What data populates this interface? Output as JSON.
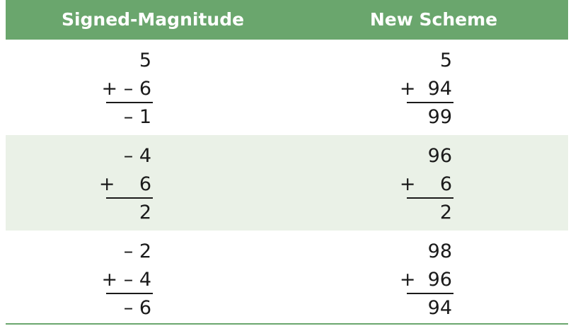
{
  "header": {
    "left": "Signed-Magnitude",
    "right": "New Scheme"
  },
  "rows": [
    {
      "signed_magnitude": {
        "top": "5",
        "addend": "+ – 6",
        "result": "– 1"
      },
      "new_scheme": {
        "top": "5",
        "addend": "+  94",
        "result": "99"
      }
    },
    {
      "signed_magnitude": {
        "top": "– 4",
        "addend": "+    6",
        "result": "2"
      },
      "new_scheme": {
        "top": "96",
        "addend": "+    6",
        "result": "2"
      }
    },
    {
      "signed_magnitude": {
        "top": "– 2",
        "addend": "+ – 4",
        "result": "– 6"
      },
      "new_scheme": {
        "top": "98",
        "addend": "+  96",
        "result": "94"
      }
    }
  ],
  "colors": {
    "header_bg": "#6aa66d",
    "header_text": "#ffffff",
    "alt_row_bg": "#eaf1e7",
    "text": "#1a1a1a"
  }
}
